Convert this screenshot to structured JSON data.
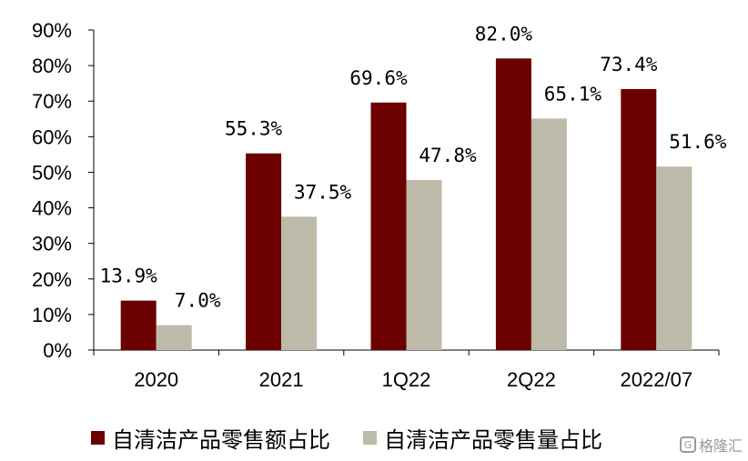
{
  "chart_data": {
    "type": "bar",
    "categories": [
      "2020",
      "2021",
      "1Q22",
      "2Q22",
      "2022/07"
    ],
    "series": [
      {
        "name": "自清洁产品零售额占比",
        "values": [
          13.9,
          55.3,
          69.6,
          82.0,
          73.4
        ],
        "labels": [
          "13.9%",
          "55.3%",
          "69.6%",
          "82.0%",
          "73.4%"
        ],
        "color": "#6B0000"
      },
      {
        "name": "自清洁产品零售量占比",
        "values": [
          7.0,
          37.5,
          47.8,
          65.1,
          51.6
        ],
        "labels": [
          "7.0%",
          "37.5%",
          "47.8%",
          "65.1%",
          "51.6%"
        ],
        "color": "#BDBAA9"
      }
    ],
    "yticks": [
      "0%",
      "10%",
      "20%",
      "30%",
      "40%",
      "50%",
      "60%",
      "70%",
      "80%",
      "90%"
    ],
    "ylim": [
      0,
      90
    ],
    "grid": false,
    "legend_position": "bottom"
  },
  "watermark": {
    "icon": "G",
    "text": "格隆汇"
  }
}
